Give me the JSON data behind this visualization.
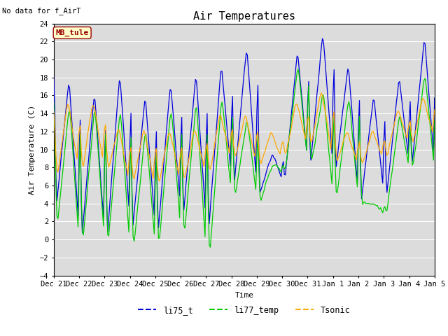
{
  "title": "Air Temperatures",
  "top_left_text": "No data for f_AirT",
  "ylabel": "Air Temperature (C)",
  "xlabel": "Time",
  "ylim": [
    -4,
    24
  ],
  "yticks": [
    -4,
    -2,
    0,
    2,
    4,
    6,
    8,
    10,
    12,
    14,
    16,
    18,
    20,
    22,
    24
  ],
  "bg_color": "#dcdcdc",
  "line_colors": {
    "li75_t": "#0000dd",
    "li77_temp": "#00cc00",
    "Tsonic": "#ffaa00"
  },
  "legend_labels": [
    "li75_t",
    "li77_temp",
    "Tsonic"
  ],
  "mb_tule_label": "MB_tule",
  "mb_tule_bg": "#ffffcc",
  "mb_tule_text_color": "#990000",
  "xtick_labels": [
    "Dec 21",
    "Dec 22",
    "Dec 23",
    "Dec 24",
    "Dec 25",
    "Dec 26",
    "Dec 27",
    "Dec 28",
    "Dec 29",
    "Dec 30",
    "Dec 31",
    "Jan 1",
    "Jan 2",
    "Jan 3",
    "Jan 4",
    "Jan 5"
  ],
  "figsize": [
    6.4,
    4.8
  ],
  "dpi": 100
}
